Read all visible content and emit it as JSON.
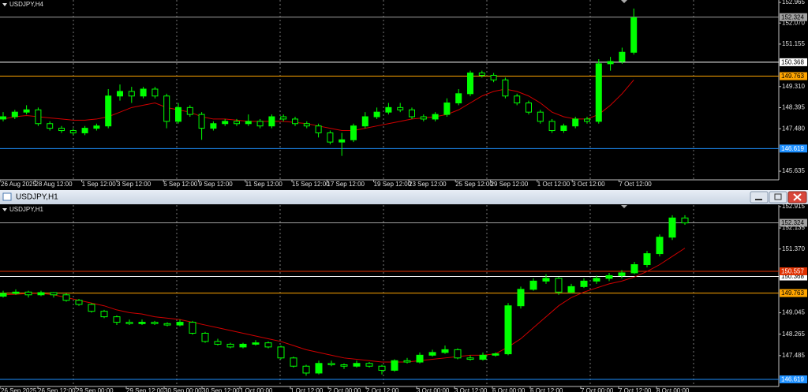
{
  "window": {
    "title": "USDJPY,H1"
  },
  "chart_data": [
    {
      "type": "candlestick",
      "title": "USDJPY,H4",
      "bull_color": "#00ff00",
      "bear_color": "#00ff00",
      "ma_color": "#d00000",
      "ylim": [
        145.26,
        153.07
      ],
      "yticks": [
        152.965,
        {
          "value": 152.07,
          "label": "152.070"
        },
        151.155,
        {
          "value": 149.31,
          "label": "149.310"
        },
        148.395,
        {
          "value": 147.48,
          "label": "147.480"
        },
        145.635
      ],
      "levels": [
        {
          "value": 152.324,
          "color": "#a0a0a0"
        },
        {
          "value": 150.368,
          "color": "#ffffff"
        },
        {
          "value": 149.763,
          "color": "#ffa500"
        },
        {
          "value": 146.619,
          "color": "#1e90ff"
        }
      ],
      "categories": [
        "26 Aug 2025",
        null,
        null,
        "28 Aug 12:00",
        null,
        null,
        null,
        "1 Sep 12:00",
        null,
        null,
        "3 Sep 12:00",
        null,
        null,
        null,
        "5 Sep 12:00",
        null,
        null,
        "9 Sep 12:00",
        null,
        null,
        null,
        "11 Sep 12:00",
        null,
        null,
        null,
        "15 Sep 12:00",
        null,
        null,
        "17 Sep 12:00",
        null,
        null,
        null,
        "19 Sep 12:00",
        null,
        null,
        "23 Sep 12:00",
        null,
        null,
        null,
        "25 Sep 12:00",
        null,
        null,
        "29 Sep 12:00",
        null,
        null,
        null,
        "1 Oct 12:00",
        null,
        null,
        "3 Oct 12:00",
        null,
        null,
        null,
        "7 Oct 12:00",
        null
      ],
      "candles": [
        [
          147.9,
          148.2,
          147.8,
          148.0
        ],
        [
          148.0,
          148.3,
          147.9,
          148.2
        ],
        [
          148.2,
          148.5,
          148.1,
          148.3
        ],
        [
          148.3,
          148.4,
          147.6,
          147.7
        ],
        [
          147.7,
          147.8,
          147.4,
          147.5
        ],
        [
          147.5,
          147.6,
          147.3,
          147.4
        ],
        [
          147.4,
          147.5,
          147.2,
          147.3
        ],
        [
          147.3,
          147.6,
          147.2,
          147.5
        ],
        [
          147.5,
          147.7,
          147.4,
          147.6
        ],
        [
          147.6,
          149.2,
          147.5,
          148.9
        ],
        [
          148.9,
          149.4,
          148.7,
          149.1
        ],
        [
          149.1,
          149.3,
          148.6,
          148.9
        ],
        [
          148.9,
          149.3,
          148.8,
          149.2
        ],
        [
          149.2,
          149.3,
          148.8,
          148.9
        ],
        [
          148.9,
          149.0,
          147.5,
          147.8
        ],
        [
          147.8,
          148.6,
          147.7,
          148.4
        ],
        [
          148.4,
          148.5,
          148.0,
          148.1
        ],
        [
          148.1,
          148.2,
          147.0,
          147.5
        ],
        [
          147.5,
          147.8,
          147.4,
          147.7
        ],
        [
          147.7,
          147.9,
          147.6,
          147.8
        ],
        [
          147.8,
          147.9,
          147.6,
          147.7
        ],
        [
          147.7,
          148.1,
          147.6,
          147.8
        ],
        [
          147.8,
          147.9,
          147.5,
          147.6
        ],
        [
          147.6,
          148.1,
          147.5,
          148.0
        ],
        [
          148.0,
          148.1,
          147.8,
          147.9
        ],
        [
          147.9,
          148.0,
          147.6,
          147.7
        ],
        [
          147.7,
          147.8,
          147.5,
          147.6
        ],
        [
          147.6,
          147.7,
          147.1,
          147.3
        ],
        [
          147.3,
          147.4,
          146.8,
          146.9
        ],
        [
          146.9,
          147.3,
          146.3,
          147.0
        ],
        [
          147.0,
          147.7,
          146.9,
          147.6
        ],
        [
          147.6,
          148.2,
          147.5,
          148.0
        ],
        [
          148.0,
          148.4,
          147.9,
          148.2
        ],
        [
          148.2,
          148.6,
          148.1,
          148.4
        ],
        [
          148.4,
          148.6,
          148.2,
          148.3
        ],
        [
          148.3,
          148.4,
          147.9,
          148.0
        ],
        [
          148.0,
          148.1,
          147.8,
          147.9
        ],
        [
          147.9,
          148.2,
          147.8,
          148.1
        ],
        [
          148.1,
          148.8,
          148.0,
          148.6
        ],
        [
          148.6,
          149.2,
          148.5,
          149.0
        ],
        [
          149.0,
          150.0,
          148.9,
          149.9
        ],
        [
          149.9,
          150.0,
          149.7,
          149.8
        ],
        [
          149.8,
          149.9,
          149.5,
          149.6
        ],
        [
          149.6,
          149.7,
          148.8,
          148.9
        ],
        [
          148.9,
          149.0,
          148.5,
          148.6
        ],
        [
          148.6,
          148.7,
          148.1,
          148.2
        ],
        [
          148.2,
          148.3,
          147.7,
          147.8
        ],
        [
          147.8,
          147.9,
          147.3,
          147.4
        ],
        [
          147.4,
          147.7,
          147.3,
          147.6
        ],
        [
          147.6,
          148.0,
          147.5,
          147.9
        ],
        [
          147.9,
          148.0,
          147.7,
          147.8
        ],
        [
          147.8,
          150.5,
          147.7,
          150.3
        ],
        [
          150.3,
          150.6,
          150.0,
          150.4
        ],
        [
          150.4,
          151.0,
          150.3,
          150.8
        ],
        [
          150.8,
          152.7,
          150.7,
          152.3
        ]
      ],
      "ma": [
        147.9,
        148.0,
        148.05,
        148.0,
        147.95,
        147.9,
        147.85,
        147.85,
        147.9,
        148.0,
        148.2,
        148.4,
        148.5,
        148.6,
        148.4,
        148.3,
        148.2,
        148.0,
        147.9,
        147.9,
        147.85,
        147.8,
        147.8,
        147.8,
        147.8,
        147.75,
        147.7,
        147.6,
        147.5,
        147.4,
        147.4,
        147.5,
        147.6,
        147.7,
        147.8,
        147.9,
        147.95,
        148.0,
        148.1,
        148.3,
        148.6,
        148.9,
        149.1,
        149.2,
        149.1,
        148.9,
        148.6,
        148.2,
        148.0,
        147.9,
        147.9,
        148.1,
        148.5,
        149.0,
        149.6
      ]
    },
    {
      "type": "candlestick",
      "title": "USDJPY,H1",
      "bull_color": "#00ff00",
      "bear_color": "#00ff00",
      "ma_color": "#d00000",
      "ylim": [
        146.36,
        152.97
      ],
      "yticks": [
        152.915,
        152.135,
        {
          "value": 151.37,
          "label": "151.370"
        },
        149.045,
        148.265,
        147.485
      ],
      "levels": [
        {
          "value": 152.324,
          "color": "#a0a0a0"
        },
        {
          "value": 150.368,
          "color": "#ffffff"
        },
        {
          "value": 150.557,
          "color": "#e03000"
        },
        {
          "value": 149.763,
          "color": "#ffa500"
        },
        {
          "value": 146.619,
          "color": "#1e90ff"
        }
      ],
      "categories": [
        "26 Sep 2025",
        null,
        null,
        "26 Sep 12:00",
        null,
        null,
        "29 Sep 00:00",
        null,
        null,
        null,
        "29 Sep 12:00",
        null,
        null,
        "30 Sep 00:00",
        null,
        null,
        "30 Sep 12:00",
        null,
        null,
        "1 Oct 00:00",
        null,
        null,
        null,
        "1 Oct 12:00",
        null,
        null,
        "2 Oct 00:00",
        null,
        null,
        "2 Oct 12:00",
        null,
        null,
        null,
        "3 Oct 00:00",
        null,
        null,
        "3 Oct 12:00",
        null,
        null,
        "6 Oct 00:00",
        null,
        null,
        "6 Oct 12:00",
        null,
        null,
        null,
        "7 Oct 00:00",
        null,
        null,
        "7 Oct 12:00",
        null,
        null,
        "8 Oct 00:00",
        null,
        null
      ],
      "candles": [
        [
          149.65,
          149.85,
          149.6,
          149.75
        ],
        [
          149.75,
          149.9,
          149.7,
          149.8
        ],
        [
          149.8,
          149.85,
          149.6,
          149.7
        ],
        [
          149.7,
          149.85,
          149.65,
          149.78
        ],
        [
          149.78,
          149.8,
          149.6,
          149.7
        ],
        [
          149.7,
          149.75,
          149.45,
          149.5
        ],
        [
          149.5,
          149.55,
          149.3,
          149.35
        ],
        [
          149.35,
          149.4,
          149.05,
          149.1
        ],
        [
          149.1,
          149.15,
          148.85,
          148.9
        ],
        [
          148.9,
          148.95,
          148.6,
          148.7
        ],
        [
          148.7,
          148.8,
          148.6,
          148.65
        ],
        [
          148.65,
          148.8,
          148.6,
          148.7
        ],
        [
          148.7,
          148.75,
          148.6,
          148.65
        ],
        [
          148.65,
          148.7,
          148.55,
          148.6
        ],
        [
          148.6,
          148.8,
          148.55,
          148.7
        ],
        [
          148.7,
          148.75,
          148.25,
          148.3
        ],
        [
          148.3,
          148.35,
          147.95,
          148.0
        ],
        [
          148.0,
          148.1,
          147.85,
          147.9
        ],
        [
          147.9,
          147.95,
          147.75,
          147.8
        ],
        [
          147.8,
          147.95,
          147.75,
          147.9
        ],
        [
          147.9,
          148.05,
          147.85,
          147.95
        ],
        [
          147.95,
          148.0,
          147.75,
          147.8
        ],
        [
          147.8,
          147.85,
          147.35,
          147.4
        ],
        [
          147.4,
          147.45,
          147.05,
          147.1
        ],
        [
          147.1,
          147.15,
          146.75,
          146.85
        ],
        [
          146.85,
          147.3,
          146.8,
          147.2
        ],
        [
          147.2,
          147.3,
          147.1,
          147.15
        ],
        [
          147.15,
          147.2,
          147.0,
          147.1
        ],
        [
          147.1,
          147.3,
          147.05,
          147.2
        ],
        [
          147.2,
          147.25,
          147.05,
          147.1
        ],
        [
          147.1,
          147.15,
          146.8,
          146.95
        ],
        [
          146.95,
          147.35,
          146.9,
          147.3
        ],
        [
          147.3,
          147.4,
          147.2,
          147.25
        ],
        [
          147.25,
          147.6,
          147.2,
          147.5
        ],
        [
          147.5,
          147.7,
          147.45,
          147.6
        ],
        [
          147.6,
          147.85,
          147.55,
          147.7
        ],
        [
          147.7,
          147.75,
          147.35,
          147.4
        ],
        [
          147.4,
          147.5,
          147.3,
          147.35
        ],
        [
          147.35,
          147.6,
          147.3,
          147.5
        ],
        [
          147.5,
          147.6,
          147.45,
          147.55
        ],
        [
          147.55,
          149.4,
          147.5,
          149.3
        ],
        [
          149.3,
          150.0,
          149.2,
          149.9
        ],
        [
          149.9,
          150.3,
          149.85,
          150.2
        ],
        [
          150.2,
          150.45,
          150.1,
          150.3
        ],
        [
          150.3,
          150.35,
          149.7,
          149.8
        ],
        [
          149.8,
          150.1,
          149.75,
          150.0
        ],
        [
          150.0,
          150.3,
          149.95,
          150.2
        ],
        [
          150.2,
          150.4,
          150.1,
          150.3
        ],
        [
          150.3,
          150.5,
          150.2,
          150.4
        ],
        [
          150.4,
          150.6,
          150.3,
          150.5
        ],
        [
          150.5,
          150.9,
          150.45,
          150.8
        ],
        [
          150.8,
          151.3,
          150.7,
          151.2
        ],
        [
          151.2,
          151.9,
          151.1,
          151.8
        ],
        [
          151.8,
          152.6,
          151.7,
          152.5
        ],
        [
          152.5,
          152.6,
          152.25,
          152.32
        ]
      ],
      "ma": [
        149.7,
        149.72,
        149.75,
        149.75,
        149.7,
        149.6,
        149.5,
        149.4,
        149.3,
        149.15,
        149.05,
        149.0,
        148.9,
        148.85,
        148.8,
        148.7,
        148.6,
        148.5,
        148.4,
        148.3,
        148.2,
        148.1,
        148.0,
        147.85,
        147.7,
        147.6,
        147.5,
        147.4,
        147.35,
        147.3,
        147.25,
        147.25,
        147.25,
        147.3,
        147.35,
        147.4,
        147.45,
        147.5,
        147.5,
        147.55,
        147.8,
        148.1,
        148.5,
        148.9,
        149.3,
        149.6,
        149.8,
        149.95,
        150.1,
        150.2,
        150.35,
        150.55,
        150.8,
        151.1,
        151.4
      ]
    }
  ]
}
